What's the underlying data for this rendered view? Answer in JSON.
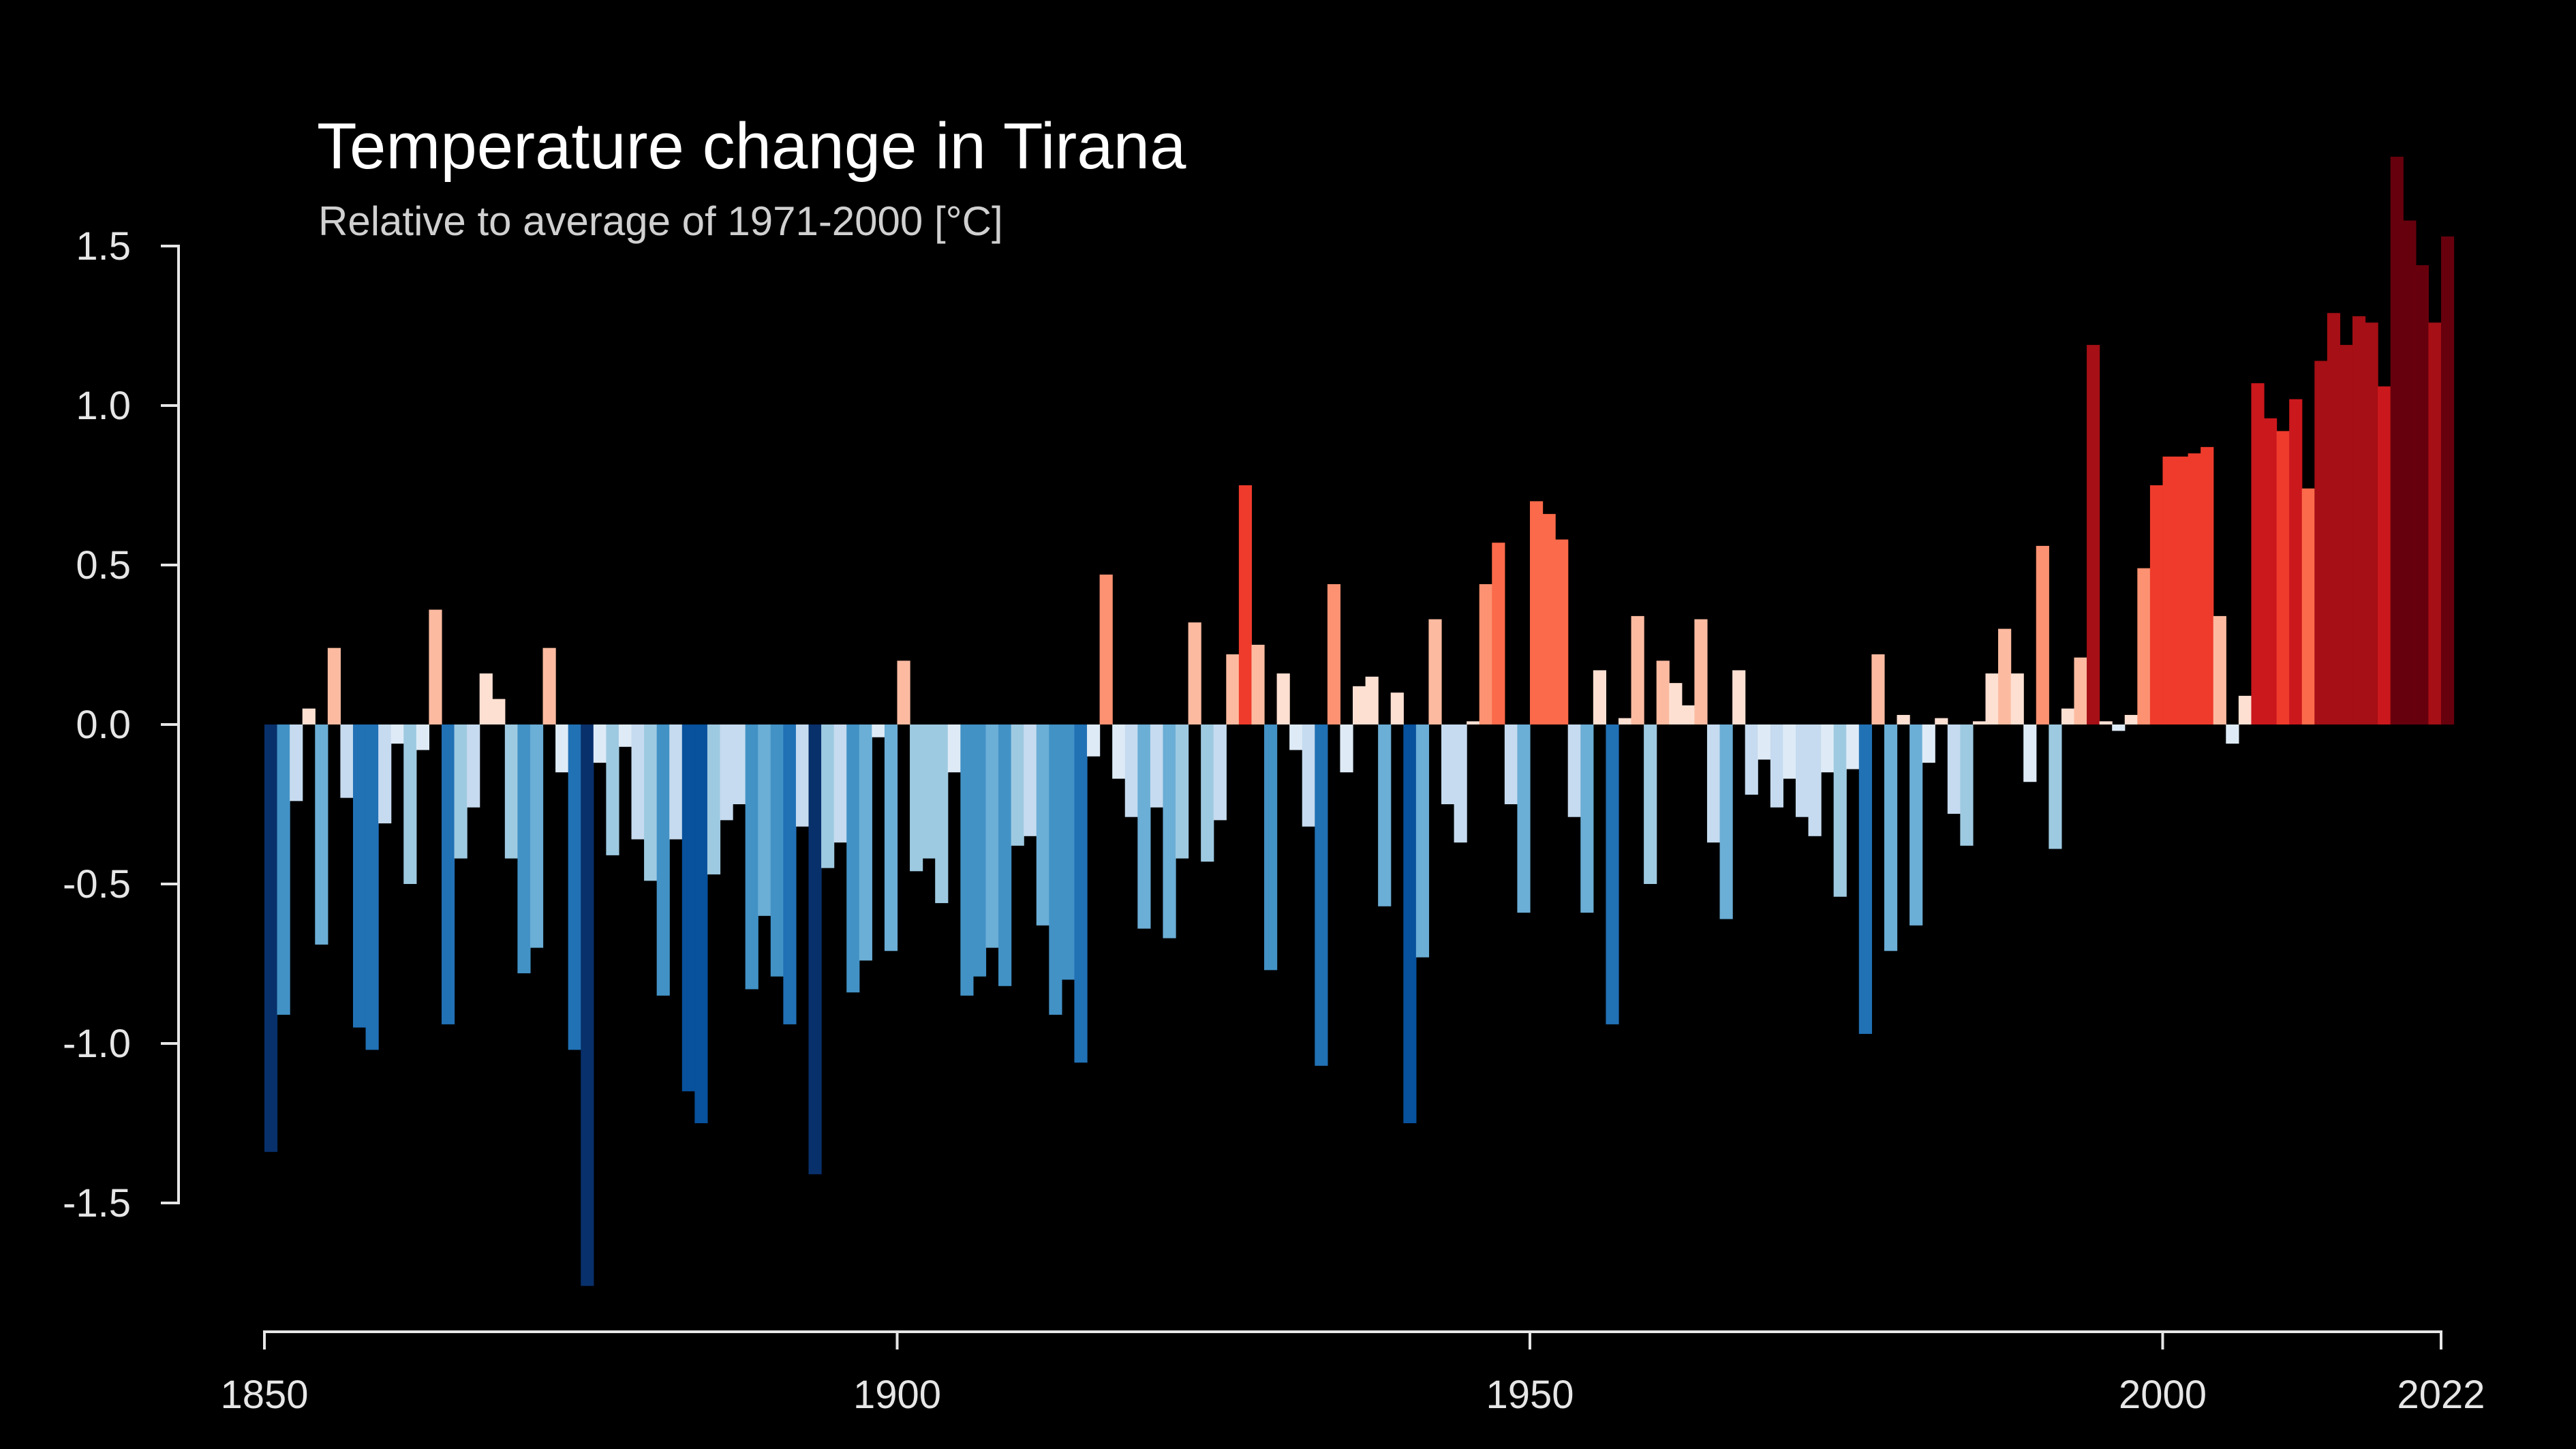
{
  "chart_data": {
    "type": "bar",
    "title": "Temperature change in Tirana",
    "subtitle": "Relative to average of 1971-2000  [°C]",
    "xlabel": "",
    "ylabel": "",
    "xlim": [
      1850,
      2022
    ],
    "ylim": [
      -1.75,
      1.75
    ],
    "yticks": [
      1.5,
      1.0,
      0.5,
      0.0,
      -0.5,
      -1.0,
      -1.5
    ],
    "ytick_labels": [
      "1.5",
      "1.0",
      "0.5",
      "0.0",
      "-0.5",
      "-1.0",
      "-1.5"
    ],
    "xticks": [
      1850,
      1900,
      1950,
      2000,
      2022
    ],
    "xtick_labels": [
      "1850",
      "1900",
      "1950",
      "2000",
      "2022"
    ],
    "grid": false,
    "legend": "none",
    "color_scale": {
      "vmin": -1.5,
      "vmax": 1.5,
      "colors": [
        "#08306b",
        "#08519c",
        "#2171b5",
        "#4292c6",
        "#6baed6",
        "#9ecae1",
        "#c6dbef",
        "#deebf7",
        "#fee0d2",
        "#fcbba1",
        "#fc9272",
        "#fb6a4a",
        "#ef3b2c",
        "#cb181d",
        "#a50f15",
        "#67000d"
      ]
    },
    "years_start": 1850,
    "values": [
      -1.34,
      -0.91,
      -0.24,
      0.05,
      -0.69,
      0.24,
      -0.23,
      -0.95,
      -1.02,
      -0.31,
      -0.06,
      -0.5,
      -0.08,
      0.36,
      -0.94,
      -0.42,
      -0.26,
      0.16,
      0.08,
      -0.42,
      -0.78,
      -0.7,
      0.24,
      -0.15,
      -1.02,
      -1.76,
      -0.12,
      -0.41,
      -0.07,
      -0.36,
      -0.49,
      -0.85,
      -0.36,
      -1.15,
      -1.25,
      -0.47,
      -0.3,
      -0.25,
      -0.83,
      -0.6,
      -0.79,
      -0.94,
      -0.32,
      -1.41,
      -0.45,
      -0.37,
      -0.84,
      -0.74,
      -0.04,
      -0.71,
      0.2,
      -0.46,
      -0.42,
      -0.56,
      -0.15,
      -0.85,
      -0.79,
      -0.7,
      -0.82,
      -0.38,
      -0.35,
      -0.63,
      -0.91,
      -0.8,
      -1.06,
      -0.1,
      0.47,
      -0.17,
      -0.29,
      -0.64,
      -0.26,
      -0.67,
      -0.42,
      0.32,
      -0.43,
      -0.3,
      0.22,
      0.75,
      0.25,
      -0.77,
      0.16,
      -0.08,
      -0.32,
      -1.07,
      0.44,
      -0.15,
      0.12,
      0.15,
      -0.57,
      0.1,
      -1.25,
      -0.73,
      0.33,
      -0.25,
      -0.37,
      0.01,
      0.44,
      0.57,
      -0.25,
      -0.59,
      0.7,
      0.66,
      0.58,
      -0.29,
      -0.59,
      0.17,
      -0.94,
      0.02,
      0.34,
      -0.5,
      0.2,
      0.13,
      0.06,
      0.33,
      -0.37,
      -0.61,
      0.17,
      -0.22,
      -0.11,
      -0.26,
      -0.17,
      -0.29,
      -0.35,
      -0.15,
      -0.54,
      -0.14,
      -0.97,
      0.22,
      -0.71,
      0.03,
      -0.63,
      -0.12,
      0.02,
      -0.28,
      -0.38,
      0.01,
      0.16,
      0.3,
      0.16,
      -0.18,
      0.56,
      -0.39,
      0.05,
      0.21,
      1.19,
      0.01,
      -0.02,
      0.03,
      0.49,
      0.75,
      0.84,
      0.84,
      0.85,
      0.87,
      0.34,
      -0.06,
      0.09,
      1.07,
      0.96,
      0.92,
      1.02,
      0.74,
      1.14,
      1.29,
      1.19,
      1.28,
      1.26,
      1.06,
      1.78,
      1.58,
      1.44,
      1.26,
      1.53
    ]
  }
}
